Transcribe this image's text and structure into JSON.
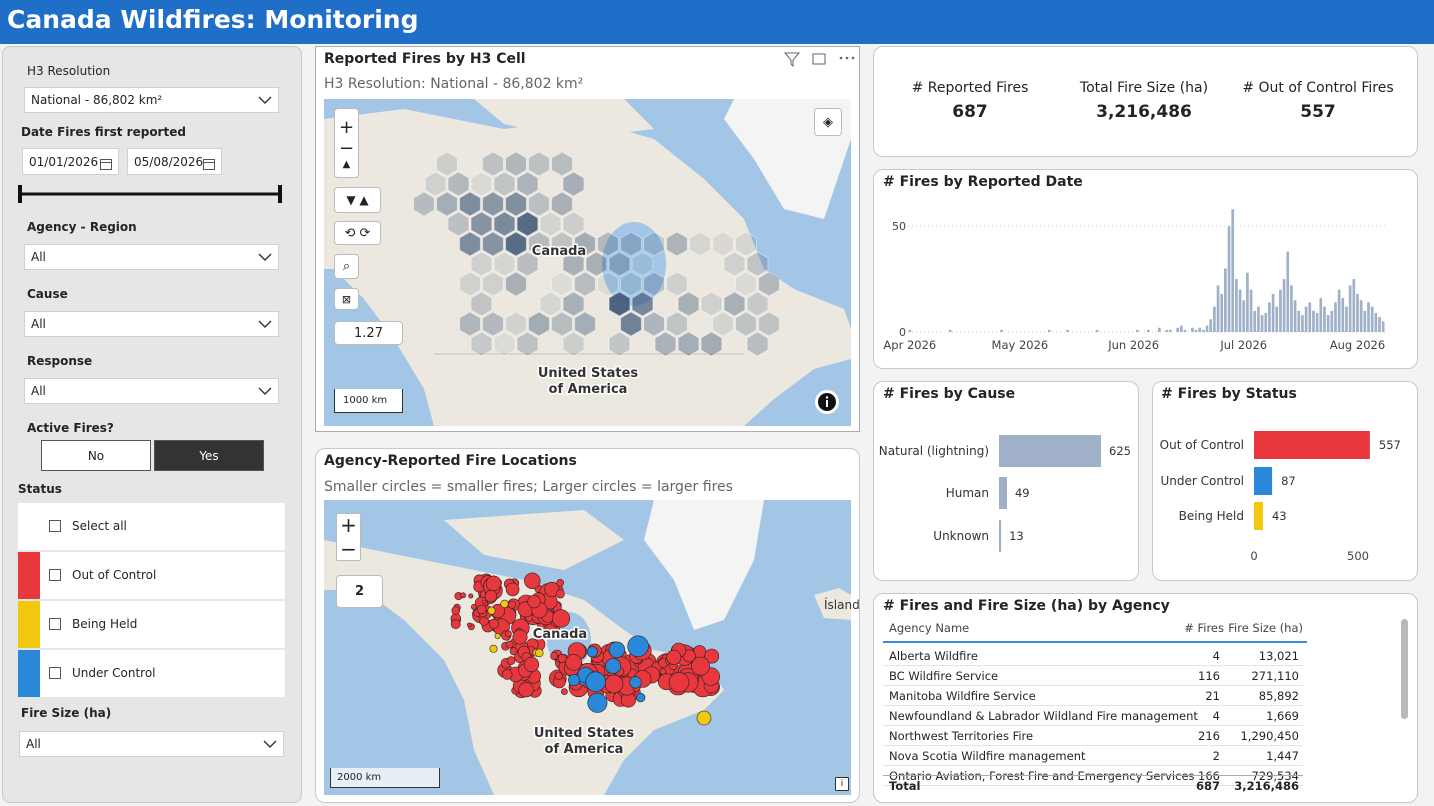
{
  "header": {
    "title": "Canada Wildfires: Monitoring"
  },
  "filters": {
    "h3_resolution": {
      "label": "H3 Resolution",
      "value": "National - 86,802 km²"
    },
    "date": {
      "label": "Date Fires first reported",
      "start": "01/01/2026",
      "end": "05/08/2026"
    },
    "agency_region": {
      "label": "Agency - Region",
      "value": "All"
    },
    "cause": {
      "label": "Cause",
      "value": "All"
    },
    "response": {
      "label": "Response",
      "value": "All"
    },
    "active_fires": {
      "label": "Active Fires?",
      "options": [
        "No",
        "Yes"
      ],
      "selected": "Yes"
    },
    "status": {
      "label": "Status",
      "options": [
        "Select all",
        "Out of Control",
        "Being Held",
        "Under Control"
      ]
    },
    "fire_size": {
      "label": "Fire Size (ha)",
      "value": "All"
    }
  },
  "maps": [
    {
      "title": "Reported Fires by H3 Cell",
      "subtitle": "H3 Resolution: National - 86,802 km²",
      "labels": {
        "canada": "Canada",
        "usa": [
          "United States",
          "of America"
        ]
      },
      "scale": "1000 km",
      "zoom": "1.27"
    },
    {
      "title": "Agency-Reported Fire Locations",
      "subtitle": "Smaller circles = smaller fires; Larger circles = larger fires",
      "labels": {
        "canada": "Canada",
        "usa": [
          "United States",
          "of America"
        ],
        "iceland": "Ísland"
      },
      "scale": "2000 km",
      "zoom": "2"
    }
  ],
  "kpis": [
    {
      "label": "# Reported Fires",
      "value": "687"
    },
    {
      "label": "Total Fire Size (ha)",
      "value": "3,216,486"
    },
    {
      "label": "# Out of Control Fires",
      "value": "557"
    }
  ],
  "chart_data": [
    {
      "type": "bar",
      "title": "# Fires by Reported Date",
      "color": "#9fb0c8",
      "grid": true,
      "ylim": [
        0,
        60
      ],
      "yticks": [
        0,
        50
      ],
      "categories": [
        "Apr 2026",
        null,
        null,
        null,
        null,
        null,
        null,
        null,
        null,
        null,
        null,
        null,
        null,
        null,
        null,
        null,
        null,
        null,
        null,
        null,
        null,
        null,
        null,
        null,
        null,
        null,
        null,
        null,
        null,
        null,
        "May 2026",
        null,
        null,
        null,
        null,
        null,
        null,
        null,
        null,
        null,
        null,
        null,
        null,
        null,
        null,
        null,
        null,
        null,
        null,
        null,
        null,
        null,
        null,
        null,
        null,
        null,
        null,
        null,
        null,
        null,
        null,
        "Jun 2026",
        null,
        null,
        null,
        null,
        null,
        null,
        null,
        null,
        null,
        null,
        null,
        null,
        null,
        null,
        null,
        null,
        null,
        null,
        null,
        null,
        null,
        null,
        null,
        null,
        null,
        null,
        null,
        null,
        null,
        "Jul 2026",
        null,
        null,
        null,
        null,
        null,
        null,
        null,
        null,
        null,
        null,
        null,
        null,
        null,
        null,
        null,
        null,
        null,
        null,
        null,
        null,
        null,
        null,
        null,
        null,
        null,
        null,
        null,
        null,
        null,
        null,
        "Aug 2026",
        null,
        null,
        null,
        null,
        null,
        null,
        null
      ],
      "values": [
        1,
        0,
        0,
        0,
        0,
        0,
        0,
        0,
        0,
        0,
        0,
        1,
        0,
        0,
        0,
        0,
        0,
        0,
        0,
        0,
        0,
        0,
        0,
        0,
        0,
        1,
        0,
        0,
        0,
        0,
        0,
        0,
        0,
        0,
        0,
        0,
        0,
        0,
        1,
        0,
        0,
        0,
        0,
        1,
        0,
        0,
        0,
        0,
        0,
        0,
        0,
        1,
        0,
        0,
        0,
        0,
        0,
        0,
        0,
        0,
        0,
        0,
        1,
        0,
        0,
        1,
        0,
        0,
        2,
        0,
        1,
        1,
        0,
        2,
        3,
        1,
        0,
        2,
        1,
        2,
        1,
        3,
        6,
        12,
        22,
        18,
        30,
        50,
        58,
        25,
        20,
        15,
        28,
        20,
        10,
        12,
        8,
        9,
        14,
        18,
        12,
        20,
        25,
        38,
        22,
        15,
        10,
        8,
        12,
        14,
        10,
        9,
        16,
        12,
        8,
        10,
        14,
        20,
        16,
        12,
        22,
        25,
        18,
        15,
        10,
        14,
        12,
        9,
        7,
        5
      ]
    },
    {
      "type": "hbar",
      "title": "# Fires by Cause",
      "color": "#9fb0c8",
      "categories": [
        "Natural (lightning)",
        "Human",
        "Unknown"
      ],
      "values": [
        625,
        49,
        13
      ]
    },
    {
      "type": "hbar",
      "title": "# Fires by Status",
      "colors": [
        "#e8383d",
        "#2b88d8",
        "#f2c80f"
      ],
      "categories": [
        "Out of Control",
        "Under Control",
        "Being Held"
      ],
      "values": [
        557,
        87,
        43
      ],
      "xlim": [
        0,
        560
      ],
      "xticks": [
        0,
        500
      ]
    }
  ],
  "table": {
    "title": "# Fires and Fire Size (ha) by Agency",
    "columns": [
      "Agency Name",
      "# Fires",
      "Fire Size (ha)"
    ],
    "rows": [
      [
        "Alberta Wildfire",
        "4",
        "13,021"
      ],
      [
        "BC Wildfire Service",
        "116",
        "271,110"
      ],
      [
        "Manitoba Wildfire Service",
        "21",
        "85,892"
      ],
      [
        "Newfoundland & Labrador Wildland Fire management",
        "4",
        "1,669"
      ],
      [
        "Northwest Territories Fire",
        "216",
        "1,290,450"
      ],
      [
        "Nova Scotia Wildfire management",
        "2",
        "1,447"
      ],
      [
        "Ontario Aviation, Forest Fire and Emergency Services",
        "166",
        "729,534"
      ]
    ],
    "total": [
      "Total",
      "687",
      "3,216,486"
    ]
  }
}
